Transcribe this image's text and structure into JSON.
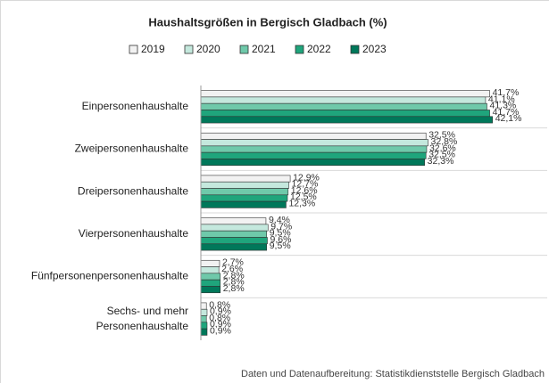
{
  "chart_data": {
    "type": "barh",
    "title": "Haushaltsgrößen in Bergisch Gladbach (%)",
    "source": "Daten und Datenaufbereitung: Statistikdienststelle Bergisch Gladbach",
    "categories": [
      "Einpersonenhaushalte",
      "Zweipersonenhaushalte",
      "Dreipersonenhaushalte",
      "Vierpersonenhaushalte",
      "Fünfpersonenpersonenhaushalte",
      [
        "Sechs- und mehr",
        "Personenhaushalte"
      ]
    ],
    "series": [
      {
        "name": "2019",
        "color": "#f2f2f2",
        "values": [
          41.7,
          32.5,
          12.9,
          9.4,
          2.7,
          0.8
        ],
        "value_labels": [
          "41,7%",
          "32,5%",
          "12,9%",
          "9,4%",
          "2,7%",
          "0,8%"
        ]
      },
      {
        "name": "2020",
        "color": "#c4e8dd",
        "values": [
          41.1,
          32.8,
          12.7,
          9.7,
          2.6,
          0.9
        ],
        "value_labels": [
          "41,1%",
          "32,8%",
          "12,7%",
          "9,7%",
          "2,6%",
          "0,9%"
        ]
      },
      {
        "name": "2021",
        "color": "#6fc9aa",
        "values": [
          41.3,
          32.6,
          12.6,
          9.5,
          2.8,
          0.8
        ],
        "value_labels": [
          "41,3%",
          "32,6%",
          "12,6%",
          "9,5%",
          "2,8%",
          "0,8%"
        ]
      },
      {
        "name": "2022",
        "color": "#1fa57c",
        "values": [
          41.7,
          32.5,
          12.5,
          9.6,
          2.8,
          0.9
        ],
        "value_labels": [
          "41,7%",
          "32,5%",
          "12,5%",
          "9,6%",
          "2,8%",
          "0,9%"
        ]
      },
      {
        "name": "2023",
        "color": "#00785a",
        "values": [
          42.1,
          32.3,
          12.3,
          9.5,
          2.8,
          0.9
        ],
        "value_labels": [
          "42,1%",
          "32,3%",
          "12,3%",
          "9,5%",
          "2,8%",
          "0,9%"
        ]
      }
    ],
    "xlim": [
      0,
      50
    ],
    "legend": "top"
  }
}
